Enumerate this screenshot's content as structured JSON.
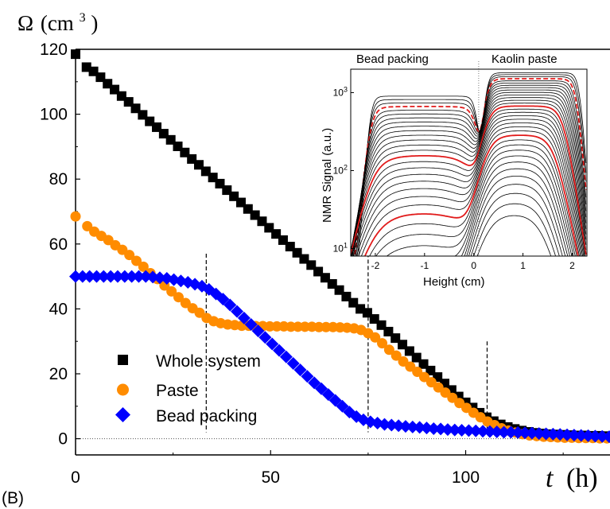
{
  "panel_label": "(B)",
  "colors": {
    "whole": "#000000",
    "paste": "#ff8c00",
    "bead": "#0000ff",
    "red": "#e11b1b"
  },
  "chart_data": [
    {
      "type": "scatter",
      "ylabel": "Ω (cm³)",
      "ylabel_symbol": "Ω",
      "ylabel_unit_open": "(cm",
      "ylabel_unit_exp": "3",
      "ylabel_unit_close": ")",
      "xlabel_var": "t",
      "xlabel_unit": "(h)",
      "xlim": [
        0,
        137
      ],
      "ylim": [
        -5,
        120
      ],
      "xticks": [
        0,
        50,
        100
      ],
      "yticks": [
        0,
        20,
        40,
        60,
        80,
        100,
        120
      ],
      "vlines_at_x": [
        33.5,
        75,
        105.5
      ],
      "zero_line": true,
      "legend": {
        "placement": "bottom-left"
      },
      "series": [
        {
          "name": "Whole system",
          "marker": "square",
          "color": "#000000",
          "points": [
            [
              0,
              118.5
            ],
            [
              2.8,
              114.5
            ],
            [
              4.6,
              113.2
            ],
            [
              6.4,
              111.4
            ],
            [
              8.2,
              109.4
            ],
            [
              10,
              107.6
            ],
            [
              11.8,
              105.6
            ],
            [
              13.6,
              103.8
            ],
            [
              15.4,
              101.8
            ],
            [
              17.2,
              99.8
            ],
            [
              19,
              97.8
            ],
            [
              20.8,
              96
            ],
            [
              22.6,
              94
            ],
            [
              24.4,
              92.1
            ],
            [
              26.2,
              90.1
            ],
            [
              28,
              88.2
            ],
            [
              29.8,
              86.2
            ],
            [
              31.6,
              84.4
            ],
            [
              33.4,
              82.4
            ],
            [
              35.2,
              80.5
            ],
            [
              37,
              78.6
            ],
            [
              38.8,
              76.6
            ],
            [
              40.6,
              74.7
            ],
            [
              42.4,
              72.8
            ],
            [
              44.2,
              70.8
            ],
            [
              46,
              68.9
            ],
            [
              47.8,
              67
            ],
            [
              49.6,
              65
            ],
            [
              51.4,
              63.1
            ],
            [
              53.2,
              61.2
            ],
            [
              55,
              59.2
            ],
            [
              56.8,
              57.3
            ],
            [
              58.6,
              55.4
            ],
            [
              60.4,
              53.5
            ],
            [
              62.2,
              51.5
            ],
            [
              64,
              49.6
            ],
            [
              65.8,
              47.7
            ],
            [
              67.6,
              45.8
            ],
            [
              69.4,
              43.8
            ],
            [
              71.2,
              41.9
            ],
            [
              73,
              40
            ],
            [
              74.8,
              38.8
            ],
            [
              76.6,
              36.9
            ],
            [
              78.4,
              35
            ],
            [
              80.2,
              33
            ],
            [
              82,
              31
            ],
            [
              83.8,
              29
            ],
            [
              85.6,
              27
            ],
            [
              87.4,
              25
            ],
            [
              89.2,
              23
            ],
            [
              91,
              21
            ],
            [
              92.8,
              19
            ],
            [
              94.6,
              17
            ],
            [
              96.4,
              15
            ],
            [
              98.2,
              13
            ],
            [
              100,
              11.2
            ],
            [
              101.8,
              9.6
            ],
            [
              103.6,
              8
            ],
            [
              105.4,
              6.6
            ],
            [
              107.2,
              5.4
            ],
            [
              109,
              4.4
            ],
            [
              110.8,
              3.6
            ],
            [
              112.6,
              3
            ],
            [
              114.4,
              2.5
            ],
            [
              116.2,
              2.1
            ],
            [
              118,
              1.8
            ],
            [
              119.8,
              1.6
            ],
            [
              121.6,
              1.4
            ],
            [
              123.4,
              1.3
            ],
            [
              125.2,
              1.2
            ],
            [
              127,
              1.1
            ],
            [
              128.8,
              1
            ],
            [
              130.6,
              1
            ],
            [
              132.4,
              0.9
            ],
            [
              134.2,
              0.9
            ],
            [
              136,
              0.8
            ]
          ]
        },
        {
          "name": "Paste",
          "marker": "circle",
          "color": "#ff8c00",
          "points": [
            [
              0,
              68.5
            ],
            [
              3,
              65.5
            ],
            [
              4.8,
              63.8
            ],
            [
              6.6,
              62.5
            ],
            [
              8.4,
              61.2
            ],
            [
              10.2,
              59.6
            ],
            [
              12,
              58.2
            ],
            [
              13.8,
              56.6
            ],
            [
              15.6,
              54.8
            ],
            [
              17.4,
              53
            ],
            [
              19.2,
              51
            ],
            [
              21,
              49.2
            ],
            [
              22.8,
              47.2
            ],
            [
              24.6,
              45.4
            ],
            [
              26.4,
              43.6
            ],
            [
              28.2,
              41.8
            ],
            [
              30,
              40.2
            ],
            [
              31.8,
              38.8
            ],
            [
              33.6,
              37.2
            ],
            [
              35.4,
              36.2
            ],
            [
              37.2,
              35.6
            ],
            [
              39,
              35.2
            ],
            [
              40.8,
              35
            ],
            [
              42.6,
              34.8
            ],
            [
              44.4,
              34.8
            ],
            [
              46.2,
              34.7
            ],
            [
              48,
              34.7
            ],
            [
              49.8,
              34.6
            ],
            [
              51.6,
              34.6
            ],
            [
              53.4,
              34.6
            ],
            [
              55.2,
              34.5
            ],
            [
              57,
              34.5
            ],
            [
              58.8,
              34.5
            ],
            [
              60.6,
              34.5
            ],
            [
              62.4,
              34.4
            ],
            [
              64.2,
              34.4
            ],
            [
              66,
              34.4
            ],
            [
              67.8,
              34.3
            ],
            [
              69.6,
              34.2
            ],
            [
              71.4,
              34
            ],
            [
              73.2,
              33.5
            ],
            [
              75,
              32.5
            ],
            [
              76.8,
              31.2
            ],
            [
              78.6,
              29.4
            ],
            [
              80.4,
              27.4
            ],
            [
              82.2,
              25.6
            ],
            [
              84,
              23.8
            ],
            [
              85.8,
              22.2
            ],
            [
              87.6,
              20.6
            ],
            [
              89.4,
              19
            ],
            [
              91.2,
              17.4
            ],
            [
              93,
              15.8
            ],
            [
              94.8,
              14.2
            ],
            [
              96.6,
              12.6
            ],
            [
              98.4,
              11
            ],
            [
              100.2,
              9.5
            ],
            [
              102,
              8
            ],
            [
              103.8,
              6.6
            ],
            [
              105.6,
              5.3
            ],
            [
              107.4,
              4.2
            ],
            [
              109.2,
              3.2
            ],
            [
              111,
              2.5
            ],
            [
              112.8,
              1.9
            ],
            [
              114.6,
              1.4
            ],
            [
              116.4,
              1
            ],
            [
              118.2,
              0.8
            ],
            [
              120,
              0.6
            ],
            [
              121.8,
              0.5
            ],
            [
              123.6,
              0.4
            ],
            [
              125.4,
              0.3
            ],
            [
              127.2,
              0.3
            ],
            [
              129,
              0.2
            ],
            [
              130.8,
              0.2
            ],
            [
              132.6,
              0.2
            ],
            [
              134.4,
              0.1
            ],
            [
              136.2,
              0.1
            ]
          ]
        },
        {
          "name": "Bead packing",
          "marker": "diamond",
          "color": "#0000ff",
          "points": [
            [
              0,
              50
            ],
            [
              1.8,
              50
            ],
            [
              3.6,
              50
            ],
            [
              5.4,
              50
            ],
            [
              7.2,
              50
            ],
            [
              9,
              50
            ],
            [
              10.8,
              50
            ],
            [
              12.6,
              50
            ],
            [
              14.4,
              50
            ],
            [
              16.2,
              50
            ],
            [
              18,
              50
            ],
            [
              19.8,
              49.8
            ],
            [
              21.6,
              49.6
            ],
            [
              23.4,
              49.4
            ],
            [
              25.2,
              49
            ],
            [
              27,
              48.6
            ],
            [
              28.8,
              48.2
            ],
            [
              30.6,
              47.6
            ],
            [
              32.4,
              47
            ],
            [
              34.2,
              46
            ],
            [
              36,
              44.6
            ],
            [
              37.8,
              43
            ],
            [
              39.6,
              41.2
            ],
            [
              41.4,
              39.2
            ],
            [
              43.2,
              37.2
            ],
            [
              45,
              35.2
            ],
            [
              46.8,
              33.2
            ],
            [
              48.6,
              31.2
            ],
            [
              50.4,
              29.2
            ],
            [
              52.2,
              27.2
            ],
            [
              54,
              25.2
            ],
            [
              55.8,
              23.2
            ],
            [
              57.6,
              21.2
            ],
            [
              59.4,
              19.2
            ],
            [
              61.2,
              17.2
            ],
            [
              63,
              15.4
            ],
            [
              64.8,
              13.6
            ],
            [
              66.6,
              11.8
            ],
            [
              68.4,
              10
            ],
            [
              70.2,
              8.2
            ],
            [
              72,
              6.8
            ],
            [
              73.8,
              5.8
            ],
            [
              75.6,
              5.2
            ],
            [
              77.4,
              4.8
            ],
            [
              79.2,
              4.4
            ],
            [
              81,
              4.2
            ],
            [
              82.8,
              4
            ],
            [
              84.6,
              3.8
            ],
            [
              86.4,
              3.6
            ],
            [
              88.2,
              3.5
            ],
            [
              90,
              3.3
            ],
            [
              91.8,
              3.1
            ],
            [
              93.6,
              3
            ],
            [
              95.4,
              2.8
            ],
            [
              97.2,
              2.7
            ],
            [
              99,
              2.6
            ],
            [
              100.8,
              2.5
            ],
            [
              102.6,
              2.4
            ],
            [
              104.4,
              2.3
            ],
            [
              106.2,
              2.2
            ],
            [
              108,
              2.1
            ],
            [
              109.8,
              2
            ],
            [
              111.6,
              2
            ],
            [
              113.4,
              1.9
            ],
            [
              115.2,
              1.8
            ],
            [
              117,
              1.7
            ],
            [
              118.8,
              1.6
            ],
            [
              120.6,
              1.5
            ],
            [
              122.4,
              1.4
            ],
            [
              124.2,
              1.3
            ],
            [
              126,
              1.2
            ],
            [
              127.8,
              1.1
            ],
            [
              129.6,
              1
            ],
            [
              131.4,
              0.9
            ],
            [
              133.2,
              0.8
            ],
            [
              135,
              0.7
            ],
            [
              136.8,
              0.6
            ]
          ]
        }
      ]
    },
    {
      "type": "line",
      "inset": true,
      "xlabel": "Height (cm)",
      "ylabel": "NMR Signal (a.u.)",
      "region_labels": [
        "Bead packing",
        "Kaolin paste"
      ],
      "y_scale": "log",
      "xlim": [
        -2.5,
        2.3
      ],
      "ylim": [
        8,
        2000
      ],
      "xticks": [
        -2,
        -1,
        0,
        1,
        2
      ],
      "ytick_base": "10",
      "ytick_exps": [
        "1",
        "2",
        "3"
      ],
      "separator_at_x": 0.1,
      "profile_family": {
        "bead_region_x": [
          -2.1,
          0.05
        ],
        "paste_region_x_start": 0.25,
        "bead_plateau_level": 900,
        "paste_plateau_level": 1800,
        "highlighted_profiles_color": "#e11b1b"
      }
    }
  ]
}
